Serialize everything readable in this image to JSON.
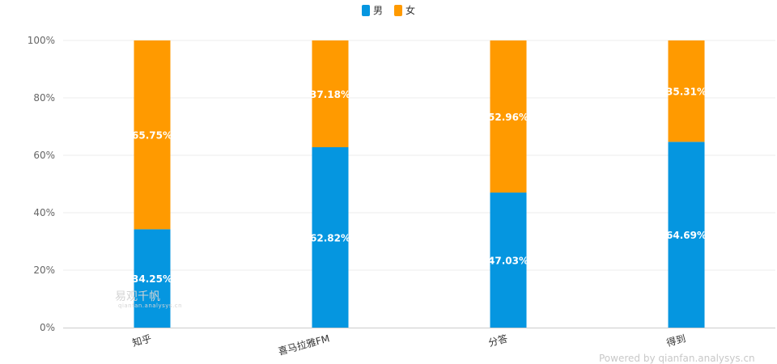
{
  "chart_data": {
    "type": "bar",
    "stacked": true,
    "categories": [
      "知乎",
      "喜马拉雅FM",
      "分答",
      "得到"
    ],
    "series": [
      {
        "name": "男",
        "color": "#0596E0",
        "values": [
          34.25,
          62.82,
          47.03,
          64.69
        ]
      },
      {
        "name": "女",
        "color": "#FF9A00",
        "values": [
          65.75,
          37.18,
          52.96,
          35.31
        ]
      }
    ],
    "ylim": [
      0,
      100
    ],
    "yticks": [
      "0%",
      "20%",
      "40%",
      "60%",
      "80%",
      "100%"
    ],
    "legend_position": "top-center",
    "grid": true
  },
  "watermark": {
    "main": "易观千帆",
    "sub": "qianfan.analysys.cn"
  },
  "credits": "Powered by qianfan.analysys.cn"
}
